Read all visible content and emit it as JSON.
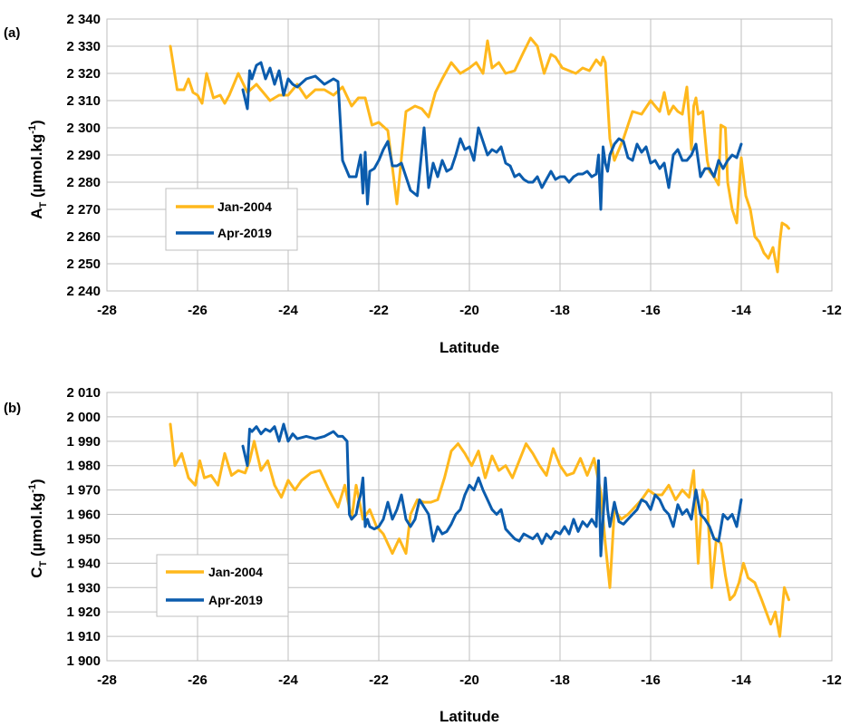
{
  "colors": {
    "jan2004": "#FFB81C",
    "apr2019": "#0B5CAD"
  },
  "chart_data": [
    {
      "type": "line",
      "panel_label": "(a)",
      "xlabel": "Latitude",
      "ylabel_main": "A",
      "ylabel_sub": "T",
      "ylabel_rest": " (µmol.kg",
      "ylabel_sup": "-1",
      "ylabel_end": ")",
      "xlim": [
        -28,
        -12
      ],
      "ylim": [
        2240,
        2340
      ],
      "xticks": [
        -28,
        -26,
        -24,
        -22,
        -20,
        -18,
        -16,
        -14,
        -12
      ],
      "xtick_labels": [
        "-28",
        "-26",
        "-24",
        "-22",
        "-20",
        "-18",
        "-16",
        "-14",
        "-12"
      ],
      "yticks": [
        2240,
        2250,
        2260,
        2270,
        2280,
        2290,
        2300,
        2310,
        2320,
        2330,
        2340
      ],
      "ytick_labels": [
        "2 240",
        "2 250",
        "2 260",
        "2 270",
        "2 280",
        "2 290",
        "2 300",
        "2 310",
        "2 320",
        "2 330",
        "2 340"
      ],
      "grid": true,
      "legend_position": "lower-left",
      "series": [
        {
          "name": "Jan-2004",
          "color_key": "jan2004",
          "x": [
            -26.6,
            -26.45,
            -26.3,
            -26.2,
            -26.1,
            -26.0,
            -25.9,
            -25.8,
            -25.65,
            -25.5,
            -25.4,
            -25.3,
            -25.1,
            -24.9,
            -24.7,
            -24.55,
            -24.4,
            -24.2,
            -24.0,
            -23.8,
            -23.6,
            -23.4,
            -23.2,
            -23.0,
            -22.8,
            -22.6,
            -22.45,
            -22.3,
            -22.15,
            -22.0,
            -21.8,
            -21.6,
            -21.4,
            -21.2,
            -21.05,
            -20.9,
            -20.75,
            -20.6,
            -20.4,
            -20.2,
            -20.0,
            -19.85,
            -19.7,
            -19.6,
            -19.5,
            -19.35,
            -19.2,
            -19.0,
            -18.8,
            -18.65,
            -18.5,
            -18.35,
            -18.2,
            -18.1,
            -17.95,
            -17.8,
            -17.65,
            -17.5,
            -17.35,
            -17.2,
            -17.1,
            -17.05,
            -17.0,
            -16.95,
            -16.9,
            -16.8,
            -16.6,
            -16.4,
            -16.2,
            -16.0,
            -15.9,
            -15.8,
            -15.7,
            -15.6,
            -15.5,
            -15.4,
            -15.3,
            -15.2,
            -15.1,
            -15.05,
            -15.0,
            -14.95,
            -14.85,
            -14.75,
            -14.7,
            -14.6,
            -14.5,
            -14.45,
            -14.35,
            -14.3,
            -14.2,
            -14.1,
            -14.0,
            -13.9,
            -13.8,
            -13.7,
            -13.6,
            -13.5,
            -13.4,
            -13.3,
            -13.2,
            -13.15,
            -13.1,
            -13.0,
            -12.95
          ],
          "y": [
            2330,
            2314,
            2314,
            2318,
            2313,
            2312,
            2309,
            2320,
            2311,
            2312,
            2309,
            2312,
            2320,
            2313,
            2316,
            2313,
            2310,
            2312,
            2312,
            2316,
            2311,
            2314,
            2314,
            2312,
            2315,
            2308,
            2311,
            2311,
            2301,
            2302,
            2299,
            2272,
            2306,
            2308,
            2307,
            2304,
            2313,
            2318,
            2324,
            2320,
            2322,
            2324,
            2320,
            2332,
            2322,
            2324,
            2320,
            2321,
            2328,
            2333,
            2330,
            2320,
            2327,
            2326,
            2322,
            2321,
            2320,
            2322,
            2321,
            2325,
            2323,
            2326,
            2324,
            2310,
            2296,
            2288,
            2296,
            2306,
            2305,
            2310,
            2308,
            2306,
            2313,
            2305,
            2308,
            2306,
            2305,
            2315,
            2292,
            2308,
            2311,
            2305,
            2306,
            2288,
            2284,
            2282,
            2279,
            2301,
            2300,
            2280,
            2270,
            2265,
            2289,
            2275,
            2270,
            2260,
            2258,
            2254,
            2252,
            2256,
            2247,
            2258,
            2265,
            2264,
            2263
          ]
        },
        {
          "name": "Apr-2019",
          "color_key": "apr2019",
          "x": [
            -25.0,
            -24.9,
            -24.85,
            -24.8,
            -24.7,
            -24.6,
            -24.5,
            -24.4,
            -24.3,
            -24.2,
            -24.1,
            -24.0,
            -23.9,
            -23.8,
            -23.6,
            -23.4,
            -23.2,
            -23.0,
            -22.9,
            -22.8,
            -22.7,
            -22.65,
            -22.6,
            -22.5,
            -22.4,
            -22.35,
            -22.3,
            -22.25,
            -22.2,
            -22.1,
            -22.0,
            -21.9,
            -21.8,
            -21.7,
            -21.6,
            -21.5,
            -21.4,
            -21.3,
            -21.15,
            -21.0,
            -20.9,
            -20.8,
            -20.7,
            -20.6,
            -20.5,
            -20.4,
            -20.3,
            -20.2,
            -20.1,
            -20.0,
            -19.9,
            -19.8,
            -19.7,
            -19.6,
            -19.5,
            -19.4,
            -19.3,
            -19.2,
            -19.1,
            -19.0,
            -18.9,
            -18.8,
            -18.7,
            -18.6,
            -18.5,
            -18.4,
            -18.3,
            -18.2,
            -18.1,
            -18.0,
            -17.9,
            -17.8,
            -17.7,
            -17.6,
            -17.5,
            -17.4,
            -17.3,
            -17.2,
            -17.15,
            -17.1,
            -17.05,
            -17.0,
            -16.95,
            -16.9,
            -16.8,
            -16.7,
            -16.6,
            -16.5,
            -16.4,
            -16.3,
            -16.2,
            -16.1,
            -16.0,
            -15.9,
            -15.8,
            -15.7,
            -15.6,
            -15.5,
            -15.4,
            -15.3,
            -15.2,
            -15.1,
            -15.0,
            -14.9,
            -14.8,
            -14.7,
            -14.6,
            -14.5,
            -14.4,
            -14.3,
            -14.2,
            -14.1,
            -14.0
          ],
          "y": [
            2314,
            2307,
            2321,
            2318,
            2323,
            2324,
            2318,
            2322,
            2316,
            2321,
            2312,
            2318,
            2316,
            2315,
            2318,
            2319,
            2316,
            2318,
            2317,
            2288,
            2284,
            2282,
            2282,
            2282,
            2290,
            2276,
            2291,
            2272,
            2284,
            2285,
            2288,
            2292,
            2295,
            2286,
            2286,
            2287,
            2282,
            2277,
            2275,
            2300,
            2278,
            2287,
            2282,
            2288,
            2284,
            2285,
            2290,
            2296,
            2292,
            2293,
            2288,
            2300,
            2295,
            2290,
            2292,
            2291,
            2293,
            2287,
            2286,
            2282,
            2283,
            2281,
            2280,
            2280,
            2282,
            2278,
            2281,
            2284,
            2281,
            2282,
            2282,
            2280,
            2282,
            2283,
            2283,
            2284,
            2282,
            2283,
            2290,
            2270,
            2293,
            2287,
            2284,
            2290,
            2294,
            2296,
            2295,
            2289,
            2288,
            2294,
            2291,
            2293,
            2287,
            2288,
            2285,
            2287,
            2278,
            2290,
            2292,
            2288,
            2288,
            2290,
            2294,
            2282,
            2285,
            2285,
            2282,
            2288,
            2285,
            2288,
            2290,
            2289,
            2294
          ]
        }
      ]
    },
    {
      "type": "line",
      "panel_label": "(b)",
      "xlabel": "Latitude",
      "ylabel_main": "C",
      "ylabel_sub": "T",
      "ylabel_rest": " (µmol.kg",
      "ylabel_sup": "-1",
      "ylabel_end": ")",
      "xlim": [
        -28,
        -12
      ],
      "ylim": [
        1900,
        2010
      ],
      "xticks": [
        -28,
        -26,
        -24,
        -22,
        -20,
        -18,
        -16,
        -14,
        -12
      ],
      "xtick_labels": [
        "-28",
        "-26",
        "-24",
        "-22",
        "-20",
        "-18",
        "-16",
        "-14",
        "-12"
      ],
      "yticks": [
        1900,
        1910,
        1920,
        1930,
        1940,
        1950,
        1960,
        1970,
        1980,
        1990,
        2000,
        2010
      ],
      "ytick_labels": [
        "1 900",
        "1 910",
        "1 920",
        "1 930",
        "1 940",
        "1 950",
        "1 960",
        "1 970",
        "1 980",
        "1 990",
        "2 000",
        "2 010"
      ],
      "grid": true,
      "legend_position": "lower-left",
      "series": [
        {
          "name": "Jan-2004",
          "color_key": "jan2004",
          "x": [
            -26.6,
            -26.5,
            -26.35,
            -26.2,
            -26.05,
            -25.95,
            -25.85,
            -25.7,
            -25.55,
            -25.4,
            -25.25,
            -25.1,
            -24.95,
            -24.85,
            -24.75,
            -24.6,
            -24.45,
            -24.3,
            -24.15,
            -24.0,
            -23.85,
            -23.7,
            -23.5,
            -23.3,
            -23.1,
            -22.9,
            -22.75,
            -22.6,
            -22.5,
            -22.35,
            -22.2,
            -22.05,
            -21.9,
            -21.7,
            -21.55,
            -21.4,
            -21.3,
            -21.15,
            -21.0,
            -20.85,
            -20.7,
            -20.55,
            -20.4,
            -20.25,
            -20.1,
            -19.95,
            -19.8,
            -19.65,
            -19.5,
            -19.35,
            -19.2,
            -19.05,
            -18.9,
            -18.75,
            -18.6,
            -18.45,
            -18.3,
            -18.15,
            -18.0,
            -17.85,
            -17.7,
            -17.55,
            -17.4,
            -17.25,
            -17.1,
            -17.0,
            -16.9,
            -16.8,
            -16.65,
            -16.5,
            -16.35,
            -16.2,
            -16.05,
            -15.9,
            -15.75,
            -15.6,
            -15.45,
            -15.3,
            -15.15,
            -15.05,
            -14.95,
            -14.85,
            -14.75,
            -14.65,
            -14.55,
            -14.45,
            -14.35,
            -14.25,
            -14.15,
            -14.05,
            -13.95,
            -13.85,
            -13.7,
            -13.55,
            -13.45,
            -13.35,
            -13.25,
            -13.15,
            -13.05,
            -12.95
          ],
          "y": [
            1997,
            1980,
            1985,
            1975,
            1972,
            1982,
            1975,
            1976,
            1972,
            1985,
            1976,
            1978,
            1977,
            1982,
            1990,
            1978,
            1982,
            1972,
            1967,
            1974,
            1970,
            1974,
            1977,
            1978,
            1970,
            1963,
            1972,
            1958,
            1972,
            1958,
            1962,
            1955,
            1952,
            1944,
            1950,
            1944,
            1960,
            1966,
            1965,
            1965,
            1966,
            1975,
            1986,
            1989,
            1985,
            1980,
            1986,
            1975,
            1984,
            1978,
            1980,
            1975,
            1982,
            1989,
            1985,
            1980,
            1976,
            1987,
            1980,
            1976,
            1977,
            1983,
            1976,
            1983,
            1969,
            1948,
            1930,
            1962,
            1958,
            1960,
            1963,
            1966,
            1970,
            1968,
            1968,
            1972,
            1966,
            1970,
            1967,
            1978,
            1940,
            1970,
            1965,
            1930,
            1950,
            1948,
            1935,
            1925,
            1927,
            1932,
            1940,
            1934,
            1932,
            1925,
            1920,
            1915,
            1920,
            1910,
            1930,
            1925
          ]
        },
        {
          "name": "Apr-2019",
          "color_key": "apr2019",
          "x": [
            -25.0,
            -24.9,
            -24.85,
            -24.8,
            -24.7,
            -24.6,
            -24.5,
            -24.4,
            -24.3,
            -24.2,
            -24.1,
            -24.0,
            -23.9,
            -23.8,
            -23.6,
            -23.4,
            -23.2,
            -23.0,
            -22.9,
            -22.8,
            -22.7,
            -22.65,
            -22.6,
            -22.5,
            -22.45,
            -22.4,
            -22.35,
            -22.3,
            -22.25,
            -22.2,
            -22.1,
            -22.0,
            -21.9,
            -21.8,
            -21.7,
            -21.6,
            -21.5,
            -21.4,
            -21.3,
            -21.2,
            -21.1,
            -21.0,
            -20.9,
            -20.8,
            -20.7,
            -20.6,
            -20.5,
            -20.4,
            -20.3,
            -20.2,
            -20.1,
            -20.0,
            -19.9,
            -19.8,
            -19.7,
            -19.6,
            -19.5,
            -19.4,
            -19.3,
            -19.2,
            -19.1,
            -19.0,
            -18.9,
            -18.8,
            -18.7,
            -18.6,
            -18.5,
            -18.4,
            -18.3,
            -18.2,
            -18.1,
            -18.0,
            -17.9,
            -17.8,
            -17.7,
            -17.6,
            -17.5,
            -17.4,
            -17.3,
            -17.2,
            -17.15,
            -17.1,
            -17.05,
            -17.0,
            -16.95,
            -16.9,
            -16.8,
            -16.7,
            -16.6,
            -16.5,
            -16.4,
            -16.3,
            -16.2,
            -16.1,
            -16.0,
            -15.9,
            -15.8,
            -15.7,
            -15.6,
            -15.5,
            -15.4,
            -15.3,
            -15.2,
            -15.1,
            -15.0,
            -14.9,
            -14.8,
            -14.7,
            -14.6,
            -14.5,
            -14.4,
            -14.3,
            -14.2,
            -14.1,
            -14.0
          ],
          "y": [
            1988,
            1980,
            1995,
            1994,
            1996,
            1993,
            1995,
            1994,
            1996,
            1990,
            1997,
            1990,
            1993,
            1991,
            1992,
            1991,
            1992,
            1994,
            1992,
            1992,
            1990,
            1960,
            1958,
            1960,
            1965,
            1968,
            1975,
            1955,
            1958,
            1955,
            1954,
            1955,
            1958,
            1965,
            1958,
            1962,
            1968,
            1958,
            1955,
            1958,
            1966,
            1963,
            1960,
            1949,
            1955,
            1952,
            1953,
            1956,
            1960,
            1962,
            1968,
            1972,
            1970,
            1975,
            1970,
            1966,
            1962,
            1960,
            1962,
            1954,
            1952,
            1950,
            1949,
            1952,
            1951,
            1950,
            1952,
            1948,
            1952,
            1950,
            1953,
            1952,
            1955,
            1952,
            1958,
            1953,
            1957,
            1955,
            1958,
            1955,
            1982,
            1943,
            1958,
            1975,
            1962,
            1955,
            1965,
            1957,
            1956,
            1958,
            1960,
            1962,
            1966,
            1965,
            1962,
            1968,
            1966,
            1962,
            1960,
            1955,
            1964,
            1960,
            1962,
            1958,
            1970,
            1960,
            1958,
            1955,
            1950,
            1949,
            1960,
            1958,
            1960,
            1955,
            1966
          ]
        }
      ]
    }
  ]
}
